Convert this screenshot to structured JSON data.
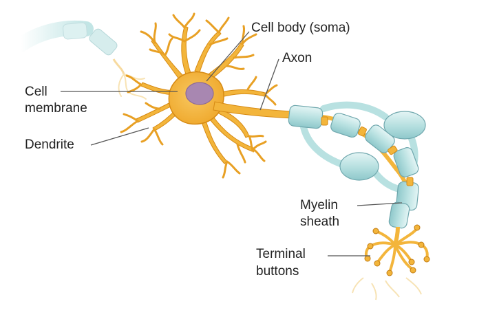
{
  "labels": {
    "cell_body": "Cell body (soma)",
    "axon": "Axon",
    "cell_membrane_1": "Cell",
    "cell_membrane_2": "membrane",
    "dendrite": "Dendrite",
    "myelin_1": "Myelin",
    "myelin_2": "sheath",
    "terminal_1": "Terminal",
    "terminal_2": "buttons"
  },
  "colors": {
    "neuron_fill": "#f3b53b",
    "neuron_stroke": "#d68a14",
    "nucleus": "#a887b1",
    "myelin_fill": "#b8e1e1",
    "myelin_stroke": "#6fa7ad",
    "leader_line": "#555555",
    "label_text": "#222222"
  }
}
